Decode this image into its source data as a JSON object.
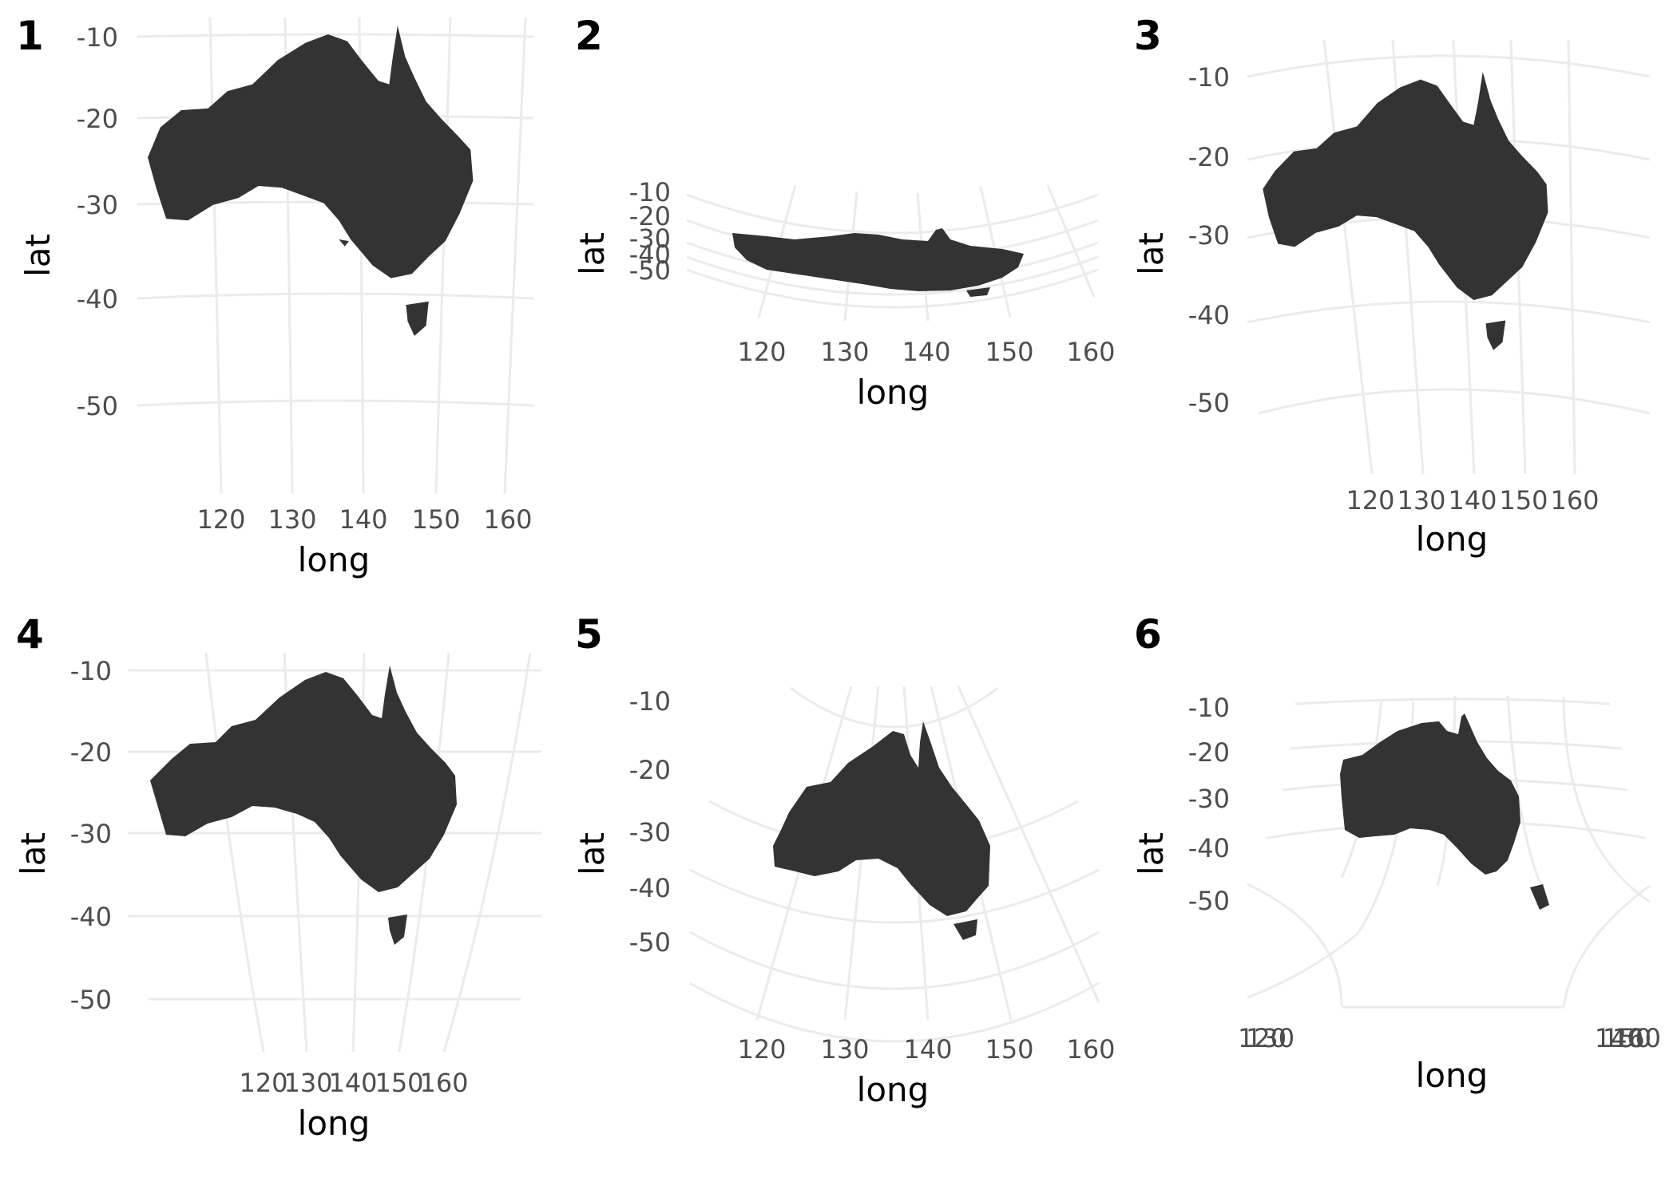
{
  "colors": {
    "land": "#333333",
    "grid": "#ebebeb",
    "tick_text": "#4d4d4d",
    "title_text": "#000000"
  },
  "panels": [
    {
      "tag": "1",
      "xlabel": "long",
      "ylabel": "lat",
      "x_ticks": [
        "120",
        "130",
        "140",
        "150",
        "160"
      ],
      "y_ticks": [
        "-10",
        "-20",
        "-30",
        "-40",
        "-50"
      ]
    },
    {
      "tag": "2",
      "xlabel": "long",
      "ylabel": "lat",
      "x_ticks": [
        "120",
        "130",
        "140",
        "150",
        "160"
      ],
      "y_ticks": [
        "-10",
        "-20",
        "-30",
        "-40",
        "-50"
      ]
    },
    {
      "tag": "3",
      "xlabel": "long",
      "ylabel": "lat",
      "x_ticks": [
        "120",
        "130",
        "140",
        "150",
        "160"
      ],
      "y_ticks": [
        "-10",
        "-20",
        "-30",
        "-40",
        "-50"
      ]
    },
    {
      "tag": "4",
      "xlabel": "long",
      "ylabel": "lat",
      "x_ticks": [
        "120",
        "130",
        "140",
        "150",
        "160"
      ],
      "y_ticks": [
        "-10",
        "-20",
        "-30",
        "-40",
        "-50"
      ]
    },
    {
      "tag": "5",
      "xlabel": "long",
      "ylabel": "lat",
      "x_ticks": [
        "120",
        "130",
        "140",
        "150",
        "160"
      ],
      "y_ticks": [
        "-10",
        "-20",
        "-30",
        "-40",
        "-50"
      ]
    },
    {
      "tag": "6",
      "xlabel": "long",
      "ylabel": "lat",
      "x_ticks": [
        "120",
        "130",
        "140",
        "150",
        "160"
      ],
      "y_ticks": [
        "-10",
        "-20",
        "-30",
        "-40",
        "-50"
      ]
    }
  ]
}
